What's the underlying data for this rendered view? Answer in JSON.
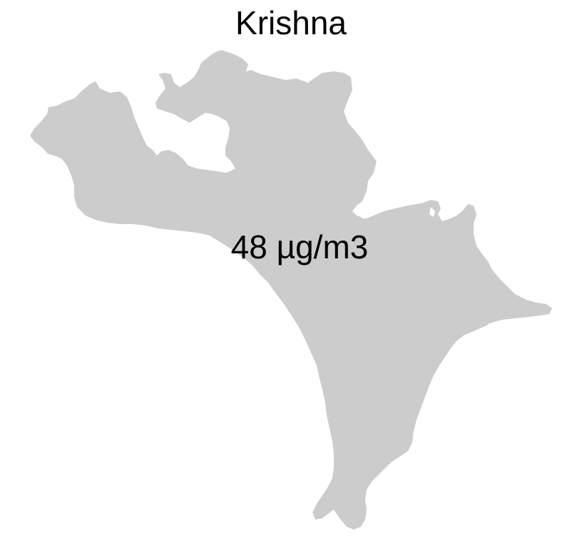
{
  "map": {
    "title": "Krishna",
    "value_label": "48 µg/m3",
    "region_fill": "#cccccc",
    "background": "#ffffff"
  }
}
